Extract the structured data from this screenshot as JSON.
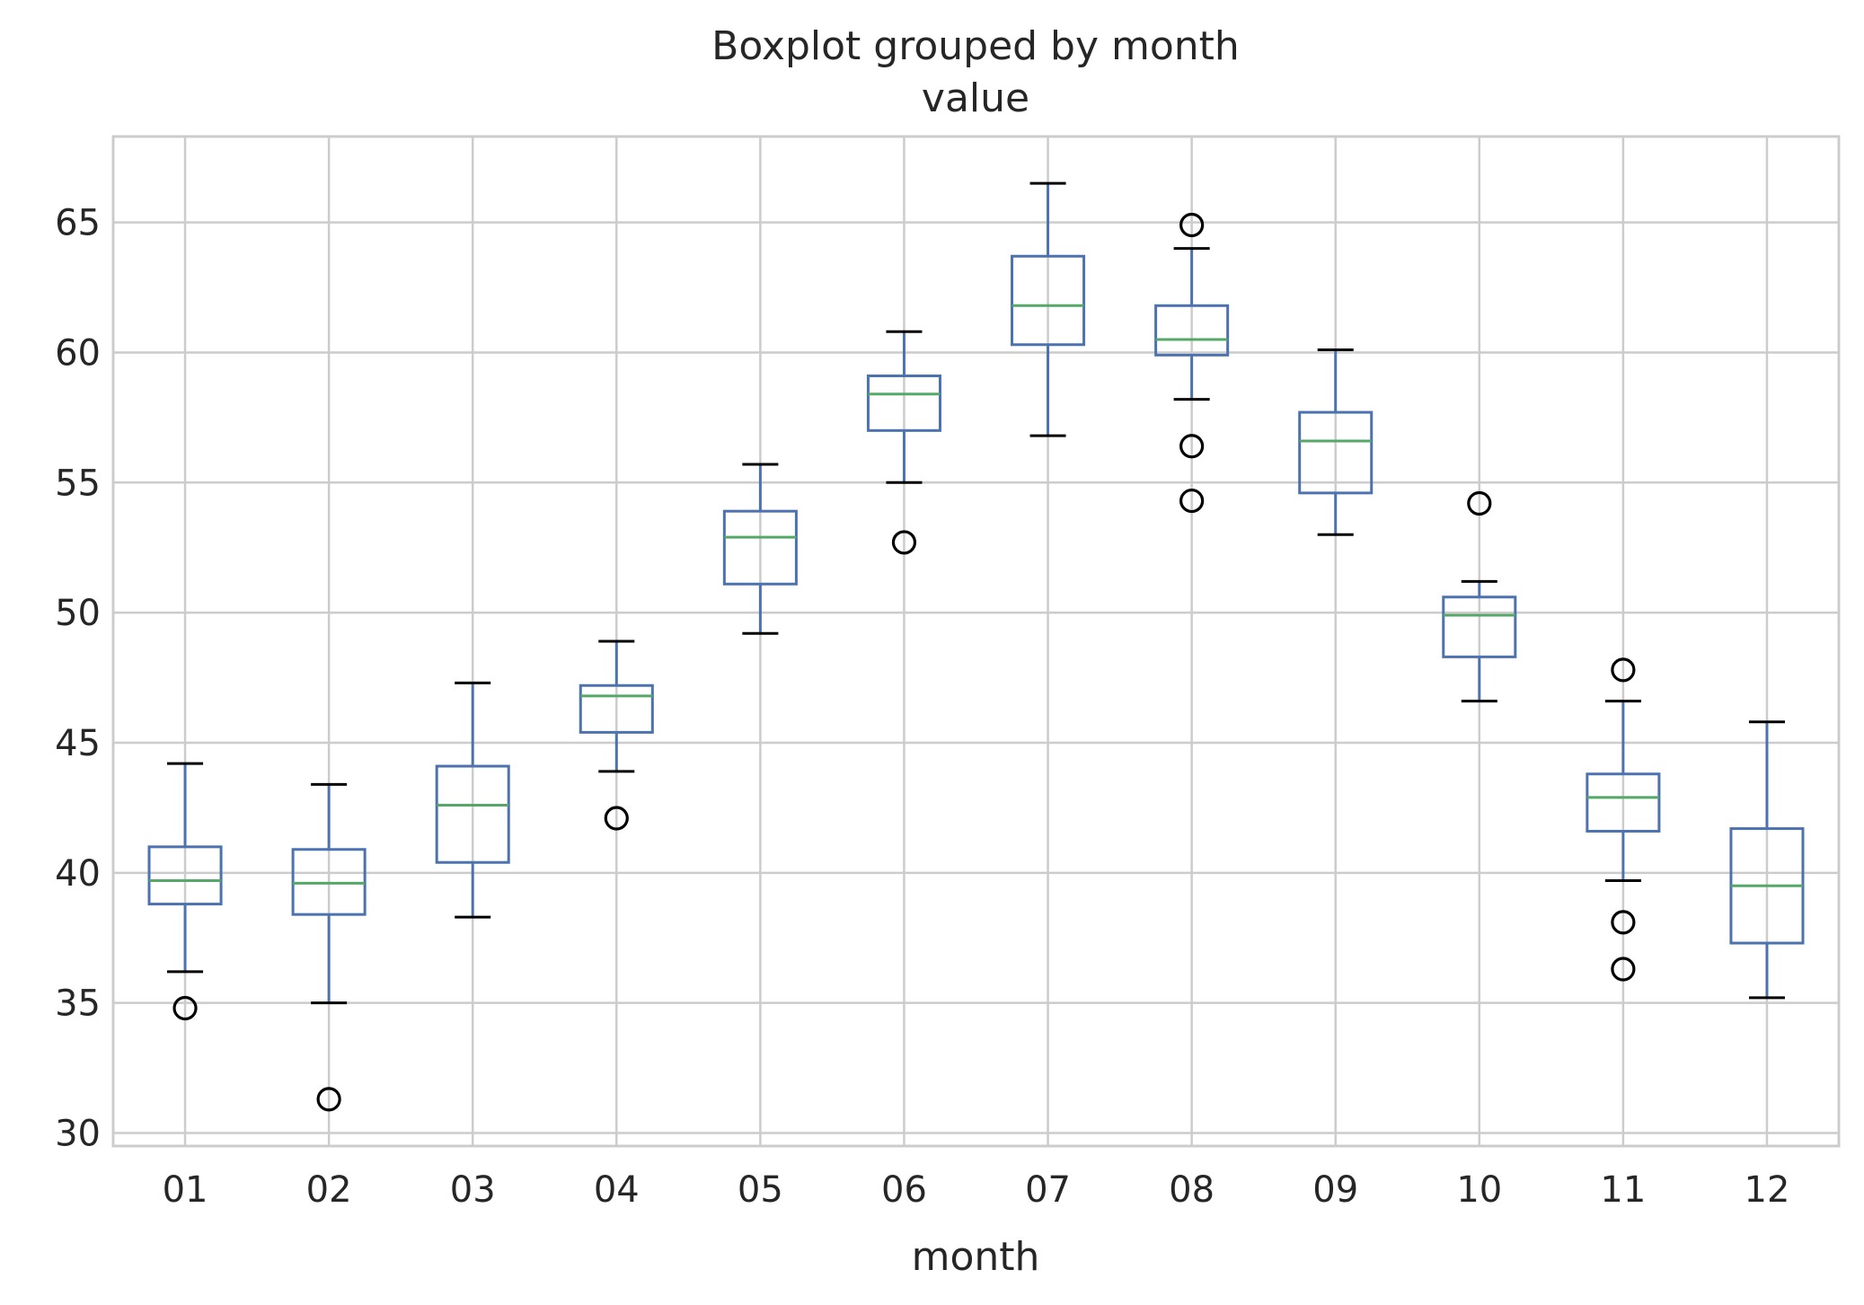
{
  "chart_data": {
    "type": "boxplot",
    "title": "Boxplot grouped by month",
    "subtitle": "value",
    "xlabel": "month",
    "ylabel": "",
    "ylim": [
      29.5,
      68.3
    ],
    "yticks": [
      30,
      35,
      40,
      45,
      50,
      55,
      60,
      65
    ],
    "grid": true,
    "colors": {
      "box": "#4c72b0",
      "median": "#55a868",
      "caps": "#000000",
      "outlier": "#000000",
      "grid": "#cccccc",
      "frame": "#cccccc"
    },
    "categories": [
      "01",
      "02",
      "03",
      "04",
      "05",
      "06",
      "07",
      "08",
      "09",
      "10",
      "11",
      "12"
    ],
    "boxes": [
      {
        "category": "01",
        "whisker_low": 36.2,
        "q1": 38.8,
        "median": 39.7,
        "q3": 41.0,
        "whisker_high": 44.2,
        "outliers": [
          34.8
        ]
      },
      {
        "category": "02",
        "whisker_low": 35.0,
        "q1": 38.4,
        "median": 39.6,
        "q3": 40.9,
        "whisker_high": 43.4,
        "outliers": [
          31.3
        ]
      },
      {
        "category": "03",
        "whisker_low": 38.3,
        "q1": 40.4,
        "median": 42.6,
        "q3": 44.1,
        "whisker_high": 47.3,
        "outliers": []
      },
      {
        "category": "04",
        "whisker_low": 43.9,
        "q1": 45.4,
        "median": 46.8,
        "q3": 47.2,
        "whisker_high": 48.9,
        "outliers": [
          42.1
        ]
      },
      {
        "category": "05",
        "whisker_low": 49.2,
        "q1": 51.1,
        "median": 52.9,
        "q3": 53.9,
        "whisker_high": 55.7,
        "outliers": []
      },
      {
        "category": "06",
        "whisker_low": 55.0,
        "q1": 57.0,
        "median": 58.4,
        "q3": 59.1,
        "whisker_high": 60.8,
        "outliers": [
          52.7
        ]
      },
      {
        "category": "07",
        "whisker_low": 56.8,
        "q1": 60.3,
        "median": 61.8,
        "q3": 63.7,
        "whisker_high": 66.5,
        "outliers": []
      },
      {
        "category": "08",
        "whisker_low": 58.2,
        "q1": 59.9,
        "median": 60.5,
        "q3": 61.8,
        "whisker_high": 64.0,
        "outliers": [
          54.3,
          56.4,
          64.9
        ]
      },
      {
        "category": "09",
        "whisker_low": 53.0,
        "q1": 54.6,
        "median": 56.6,
        "q3": 57.7,
        "whisker_high": 60.1,
        "outliers": []
      },
      {
        "category": "10",
        "whisker_low": 46.6,
        "q1": 48.3,
        "median": 49.9,
        "q3": 50.6,
        "whisker_high": 51.2,
        "outliers": [
          54.2
        ]
      },
      {
        "category": "11",
        "whisker_low": 39.7,
        "q1": 41.6,
        "median": 42.9,
        "q3": 43.8,
        "whisker_high": 46.6,
        "outliers": [
          36.3,
          38.1,
          47.8
        ]
      },
      {
        "category": "12",
        "whisker_low": 35.2,
        "q1": 37.3,
        "median": 39.5,
        "q3": 41.7,
        "whisker_high": 45.8,
        "outliers": []
      }
    ]
  }
}
